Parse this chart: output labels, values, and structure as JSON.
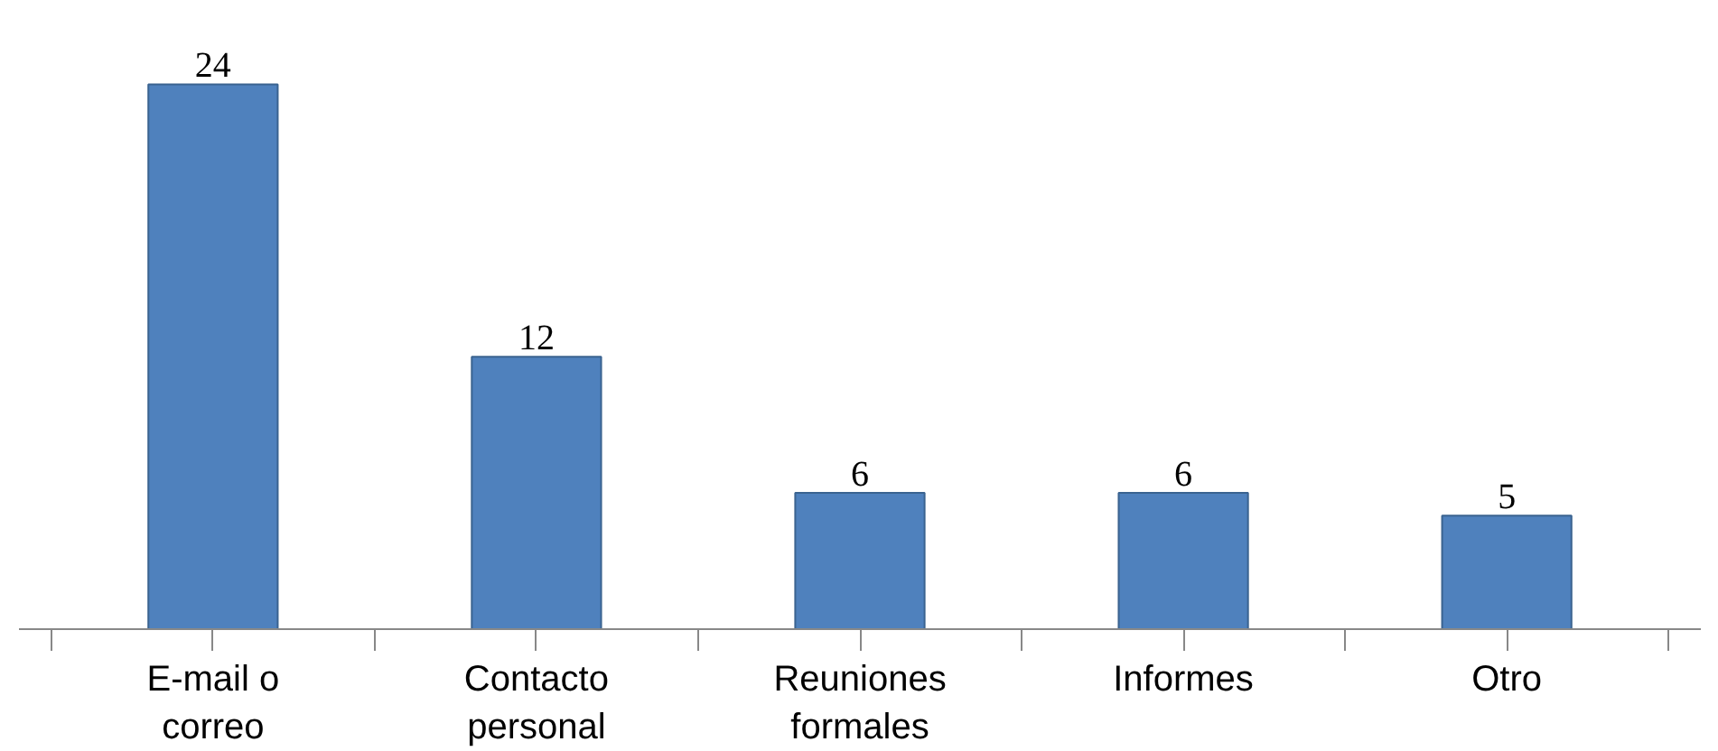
{
  "chart_data": {
    "type": "bar",
    "categories": [
      "E-mail o\ncorreo",
      "Contacto\npersonal",
      "Reuniones\nformales",
      "Informes",
      "Otro"
    ],
    "values": [
      24,
      12,
      6,
      6,
      5
    ],
    "color": "#4f81bd",
    "data_labels": true,
    "grid": false
  }
}
